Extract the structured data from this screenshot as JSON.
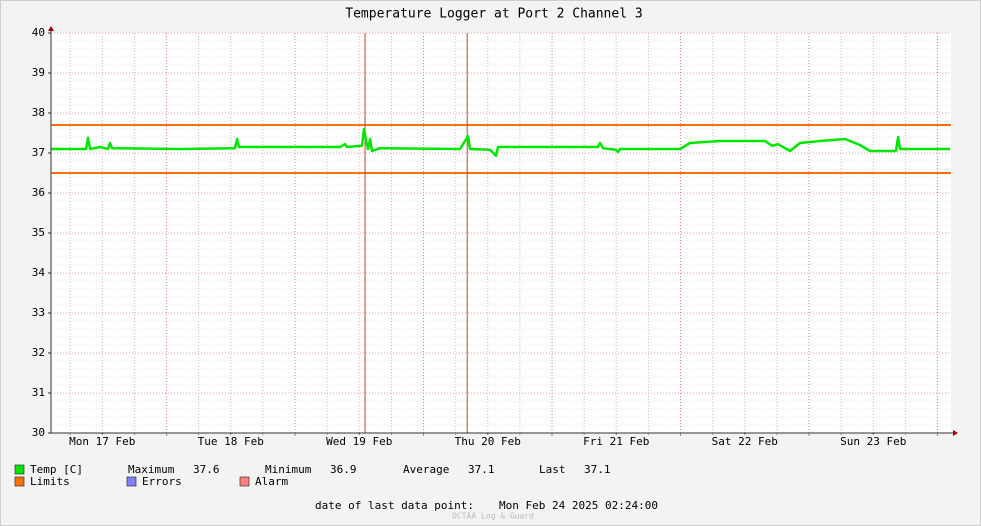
{
  "chart_data": {
    "type": "line",
    "title": "Temperature Logger at Port 2 Channel 3",
    "xlim": [
      17.101,
      24.105
    ],
    "xticks": [
      {
        "value": 17.5,
        "label": "Mon 17 Feb"
      },
      {
        "value": 18.5,
        "label": "Tue 18 Feb"
      },
      {
        "value": 19.5,
        "label": "Wed 19 Feb"
      },
      {
        "value": 20.5,
        "label": "Thu 20 Feb"
      },
      {
        "value": 21.5,
        "label": "Fri 21 Feb"
      },
      {
        "value": 22.5,
        "label": "Sat 22 Feb"
      },
      {
        "value": 23.5,
        "label": "Sun 23 Feb"
      }
    ],
    "ylim": [
      30,
      40
    ],
    "yticks": [
      30,
      31,
      32,
      33,
      34,
      35,
      36,
      37,
      38,
      39,
      40
    ],
    "grid": true,
    "series": [
      {
        "name": "Temp [C]",
        "color": "#00e600",
        "x": [
          17.101,
          17.374,
          17.389,
          17.405,
          17.482,
          17.545,
          17.56,
          17.576,
          18.105,
          18.533,
          18.549,
          18.564,
          19.039,
          19.35,
          19.389,
          19.405,
          19.521,
          19.537,
          19.553,
          19.568,
          19.584,
          19.599,
          19.661,
          20.284,
          20.346,
          20.362,
          20.518,
          20.564,
          20.58,
          21.358,
          21.374,
          21.397,
          21.498,
          21.514,
          21.529,
          21.996,
          22.074,
          22.307,
          22.658,
          22.712,
          22.759,
          22.852,
          22.93,
          23.086,
          23.28,
          23.397,
          23.475,
          23.677,
          23.693,
          23.708,
          24.097
        ],
        "values": [
          37.1,
          37.1,
          37.38,
          37.1,
          37.15,
          37.1,
          37.25,
          37.12,
          37.1,
          37.12,
          37.35,
          37.15,
          37.15,
          37.15,
          37.22,
          37.15,
          37.18,
          37.6,
          37.3,
          37.1,
          37.35,
          37.05,
          37.12,
          37.1,
          37.42,
          37.1,
          37.08,
          36.93,
          37.15,
          37.15,
          37.25,
          37.12,
          37.08,
          37.02,
          37.1,
          37.1,
          37.25,
          37.3,
          37.3,
          37.18,
          37.22,
          37.05,
          37.25,
          37.3,
          37.35,
          37.2,
          37.05,
          37.05,
          37.4,
          37.1,
          37.1
        ]
      }
    ],
    "limits": {
      "name": "Limits",
      "color": "#ff7000",
      "values": [
        37.7,
        36.5
      ]
    },
    "errors": {
      "name": "Errors",
      "color": "#7f7fff"
    },
    "alarm": {
      "name": "Alarm",
      "color": "#ff7f7f",
      "line_color": "#c04040",
      "x": [
        19.545,
        20.34
      ]
    },
    "stats": [
      {
        "label": "Maximum",
        "value": 37.6
      },
      {
        "label": "Minimum",
        "value": 36.9
      },
      {
        "label": "Average",
        "value": 37.1
      },
      {
        "label": "Last",
        "value": 37.1
      }
    ],
    "footer": {
      "label": "date of last data point:",
      "value": "Mon Feb 24 2025 02:24:00"
    },
    "watermark": "OCTAA Log & Guard"
  }
}
